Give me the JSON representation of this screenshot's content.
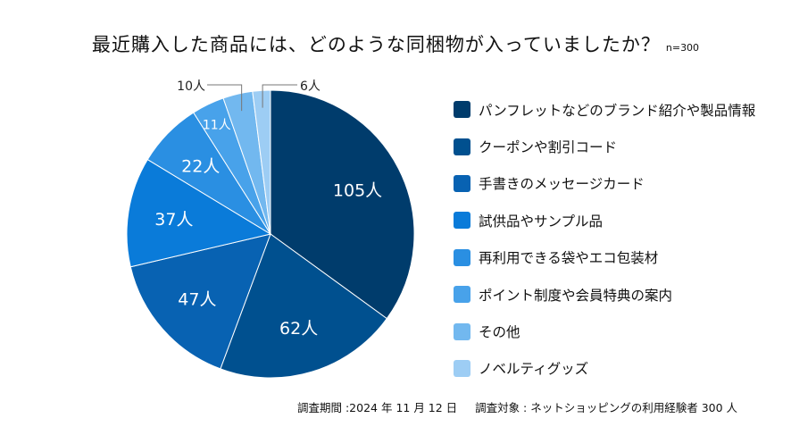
{
  "chart_data": {
    "type": "pie",
    "title": "最近購入した商品には、どのような同梱物が入っていましたか？",
    "sample_size": "n=300",
    "unit": "人",
    "legend_position": "right",
    "categories": [
      "パンフレットなどのブランド紹介や製品情報",
      "クーポンや割引コード",
      "手書きのメッセージカード",
      "試供品やサンプル品",
      "再利用できる袋やエコ包装材",
      "ポイント制度や会員特典の案内",
      "その他",
      "ノベルティグッズ"
    ],
    "values": [
      105,
      62,
      47,
      37,
      22,
      11,
      10,
      6
    ],
    "data_labels": [
      "105人",
      "62人",
      "47人",
      "37人",
      "22人",
      "11人",
      "10人",
      "6人"
    ],
    "colors": [
      "#003c6c",
      "#00508f",
      "#0862b2",
      "#0a7bd9",
      "#2a8fe2",
      "#48a2ea",
      "#72b8ef",
      "#9dcdf4"
    ]
  },
  "footer": {
    "period": "調査期間 :2024 年 11 月 12 日",
    "target": "調査対象 : ネットショッピングの利用経験者 300 人"
  }
}
